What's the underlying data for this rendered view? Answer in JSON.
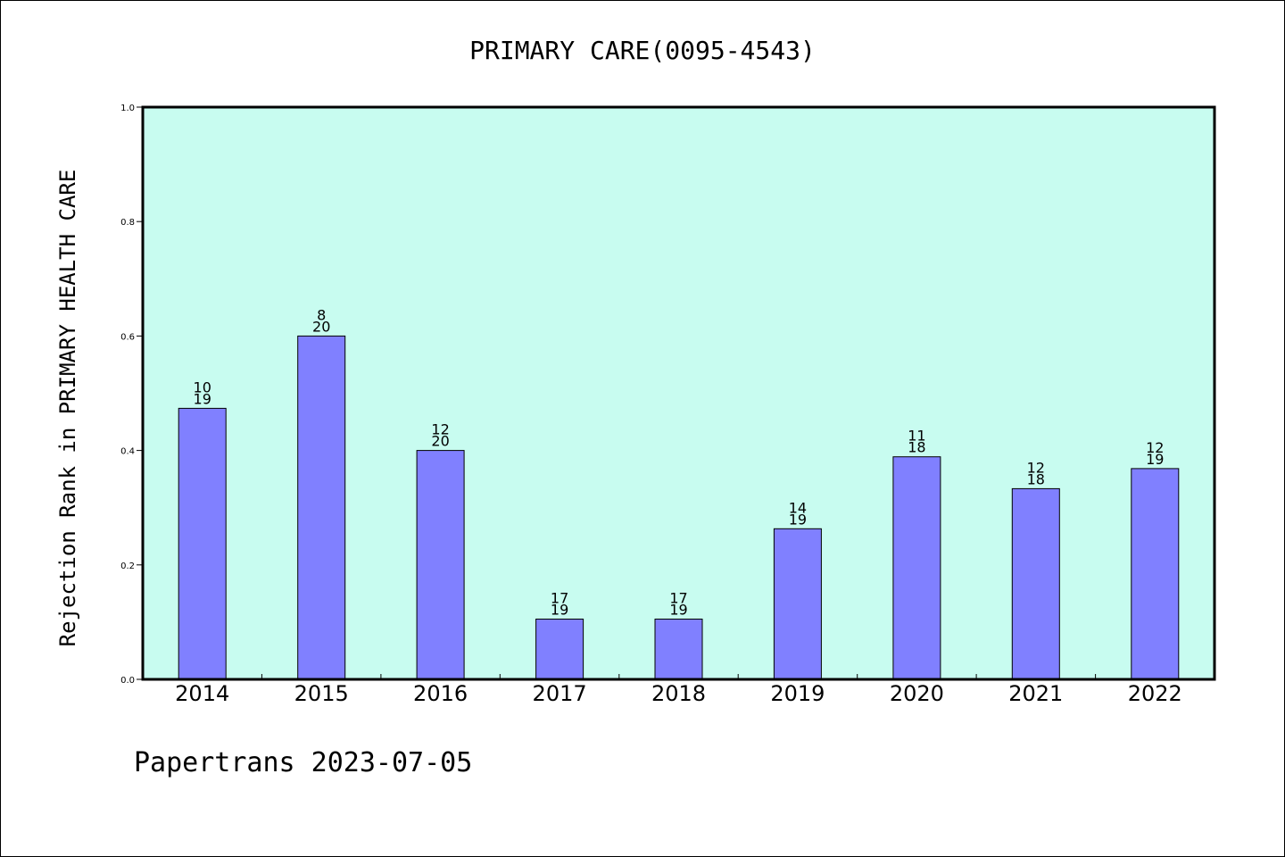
{
  "chart_data": {
    "type": "bar",
    "title": "PRIMARY CARE(0095-4543)",
    "xlabel": "",
    "ylabel": "Rejection Rank in PRIMARY HEALTH CARE",
    "ylim": [
      0.0,
      1.0
    ],
    "yticks": [
      "0.0",
      "0.2",
      "0.4",
      "0.6",
      "0.8",
      "1.0"
    ],
    "ytick_values": [
      0.0,
      0.2,
      0.4,
      0.6,
      0.8,
      1.0
    ],
    "categories": [
      "2014",
      "2015",
      "2016",
      "2017",
      "2018",
      "2019",
      "2020",
      "2021",
      "2022"
    ],
    "values": [
      0.4737,
      0.6,
      0.4,
      0.1053,
      0.1053,
      0.2632,
      0.3889,
      0.3333,
      0.3684
    ],
    "numerators": [
      "10",
      "8",
      "12",
      "17",
      "17",
      "14",
      "11",
      "12",
      "12"
    ],
    "denominators": [
      "19",
      "20",
      "20",
      "19",
      "19",
      "19",
      "18",
      "18",
      "19"
    ],
    "grid": false,
    "legend": "none"
  },
  "footer": {
    "text": "Papertrans 2023-07-05"
  },
  "colors": {
    "plot_background": "#c8fcf0",
    "bar_fill": "#8080ff",
    "bar_stroke": "#000000",
    "axis": "#000000"
  }
}
